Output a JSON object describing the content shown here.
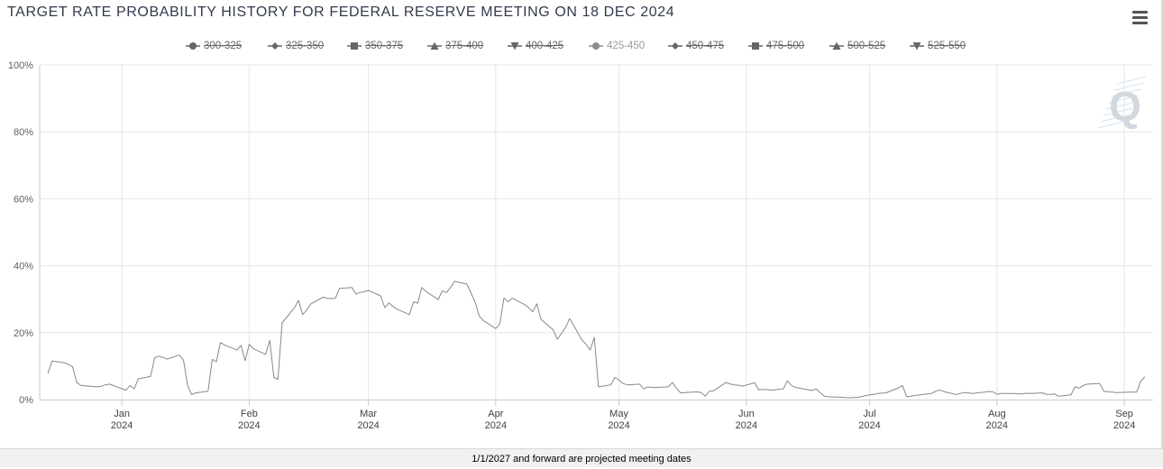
{
  "chart_data": {
    "type": "line",
    "title": "TARGET RATE PROBABILITY HISTORY FOR FEDERAL RESERVE MEETING ON 18 DEC 2024",
    "legend_placement": "top-center",
    "legend": [
      {
        "name": "300-325",
        "marker": "circle",
        "visible": false
      },
      {
        "name": "325-350",
        "marker": "diamond",
        "visible": false
      },
      {
        "name": "350-375",
        "marker": "square",
        "visible": false
      },
      {
        "name": "375-400",
        "marker": "triangle",
        "visible": false
      },
      {
        "name": "400-425",
        "marker": "triangle-down",
        "visible": false
      },
      {
        "name": "425-450",
        "marker": "circle",
        "visible": true
      },
      {
        "name": "450-475",
        "marker": "diamond",
        "visible": false
      },
      {
        "name": "475-500",
        "marker": "square",
        "visible": false
      },
      {
        "name": "500-525",
        "marker": "triangle",
        "visible": false
      },
      {
        "name": "525-550",
        "marker": "triangle-down",
        "visible": false
      }
    ],
    "x_ticks": [
      {
        "date": "2024-01-01",
        "label1": "Jan",
        "label2": "2024"
      },
      {
        "date": "2024-02-01",
        "label1": "Feb",
        "label2": "2024"
      },
      {
        "date": "2024-03-01",
        "label1": "Mar",
        "label2": "2024"
      },
      {
        "date": "2024-04-01",
        "label1": "Apr",
        "label2": "2024"
      },
      {
        "date": "2024-05-01",
        "label1": "May",
        "label2": "2024"
      },
      {
        "date": "2024-06-01",
        "label1": "Jun",
        "label2": "2024"
      },
      {
        "date": "2024-07-01",
        "label1": "Jul",
        "label2": "2024"
      },
      {
        "date": "2024-08-01",
        "label1": "Aug",
        "label2": "2024"
      },
      {
        "date": "2024-09-01",
        "label1": "Sep",
        "label2": "2024"
      }
    ],
    "y_ticks": [
      "0%",
      "20%",
      "40%",
      "60%",
      "80%",
      "100%"
    ],
    "xlim": [
      "2023-12-12",
      "2024-09-08"
    ],
    "ylim": [
      0,
      100
    ],
    "grid": true,
    "series": [
      {
        "name": "425-450",
        "color": "#888888",
        "points": [
          [
            "2023-12-14",
            7.8
          ],
          [
            "2023-12-15",
            11.5
          ],
          [
            "2023-12-18",
            11.0
          ],
          [
            "2023-12-19",
            10.5
          ],
          [
            "2023-12-20",
            9.8
          ],
          [
            "2023-12-21",
            5.2
          ],
          [
            "2023-12-22",
            4.2
          ],
          [
            "2023-12-26",
            3.8
          ],
          [
            "2023-12-27",
            4.0
          ],
          [
            "2023-12-28",
            4.4
          ],
          [
            "2023-12-29",
            4.6
          ],
          [
            "2024-01-02",
            2.8
          ],
          [
            "2024-01-03",
            4.2
          ],
          [
            "2024-01-04",
            3.2
          ],
          [
            "2024-01-05",
            6.2
          ],
          [
            "2024-01-08",
            6.9
          ],
          [
            "2024-01-09",
            12.5
          ],
          [
            "2024-01-10",
            13.0
          ],
          [
            "2024-01-11",
            12.6
          ],
          [
            "2024-01-12",
            12.1
          ],
          [
            "2024-01-15",
            13.3
          ],
          [
            "2024-01-16",
            11.8
          ],
          [
            "2024-01-17",
            4.2
          ],
          [
            "2024-01-18",
            1.5
          ],
          [
            "2024-01-19",
            2.0
          ],
          [
            "2024-01-22",
            2.5
          ],
          [
            "2024-01-23",
            12.0
          ],
          [
            "2024-01-24",
            11.3
          ],
          [
            "2024-01-25",
            17.0
          ],
          [
            "2024-01-26",
            16.3
          ],
          [
            "2024-01-29",
            14.8
          ],
          [
            "2024-01-30",
            16.2
          ],
          [
            "2024-01-31",
            11.6
          ],
          [
            "2024-02-01",
            16.5
          ],
          [
            "2024-02-02",
            15.2
          ],
          [
            "2024-02-05",
            13.5
          ],
          [
            "2024-02-06",
            17.7
          ],
          [
            "2024-02-07",
            6.6
          ],
          [
            "2024-02-08",
            6.0
          ],
          [
            "2024-02-09",
            22.9
          ],
          [
            "2024-02-12",
            27.4
          ],
          [
            "2024-02-13",
            29.6
          ],
          [
            "2024-02-14",
            25.4
          ],
          [
            "2024-02-15",
            26.8
          ],
          [
            "2024-02-16",
            28.6
          ],
          [
            "2024-02-19",
            30.6
          ],
          [
            "2024-02-20",
            30.3
          ],
          [
            "2024-02-21",
            30.2
          ],
          [
            "2024-02-22",
            30.3
          ],
          [
            "2024-02-23",
            33.2
          ],
          [
            "2024-02-26",
            33.5
          ],
          [
            "2024-02-27",
            31.5
          ],
          [
            "2024-02-28",
            32.0
          ],
          [
            "2024-02-29",
            32.2
          ],
          [
            "2024-03-01",
            32.6
          ],
          [
            "2024-03-04",
            31.0
          ],
          [
            "2024-03-05",
            27.5
          ],
          [
            "2024-03-06",
            28.9
          ],
          [
            "2024-03-07",
            27.8
          ],
          [
            "2024-03-08",
            27.0
          ],
          [
            "2024-03-11",
            25.4
          ],
          [
            "2024-03-12",
            29.2
          ],
          [
            "2024-03-13",
            28.8
          ],
          [
            "2024-03-14",
            33.5
          ],
          [
            "2024-03-15",
            32.3
          ],
          [
            "2024-03-18",
            29.9
          ],
          [
            "2024-03-19",
            32.5
          ],
          [
            "2024-03-20",
            32.0
          ],
          [
            "2024-03-21",
            33.5
          ],
          [
            "2024-03-22",
            35.3
          ],
          [
            "2024-03-25",
            34.5
          ],
          [
            "2024-03-26",
            31.8
          ],
          [
            "2024-03-27",
            29.0
          ],
          [
            "2024-03-28",
            25.0
          ],
          [
            "2024-03-29",
            23.6
          ],
          [
            "2024-04-01",
            21.2
          ],
          [
            "2024-04-02",
            22.6
          ],
          [
            "2024-04-03",
            30.4
          ],
          [
            "2024-04-04",
            29.2
          ],
          [
            "2024-04-05",
            30.3
          ],
          [
            "2024-04-08",
            28.4
          ],
          [
            "2024-04-09",
            27.5
          ],
          [
            "2024-04-10",
            26.2
          ],
          [
            "2024-04-11",
            28.6
          ],
          [
            "2024-04-12",
            24.0
          ],
          [
            "2024-04-15",
            20.8
          ],
          [
            "2024-04-16",
            18.0
          ],
          [
            "2024-04-17",
            19.8
          ],
          [
            "2024-04-18",
            21.5
          ],
          [
            "2024-04-19",
            24.2
          ],
          [
            "2024-04-22",
            17.8
          ],
          [
            "2024-04-23",
            16.5
          ],
          [
            "2024-04-24",
            14.8
          ],
          [
            "2024-04-25",
            18.6
          ],
          [
            "2024-04-26",
            3.8
          ],
          [
            "2024-04-29",
            4.4
          ],
          [
            "2024-04-30",
            6.6
          ],
          [
            "2024-05-01",
            5.8
          ],
          [
            "2024-05-02",
            4.8
          ],
          [
            "2024-05-03",
            4.4
          ],
          [
            "2024-05-06",
            4.6
          ],
          [
            "2024-05-07",
            3.2
          ],
          [
            "2024-05-08",
            3.8
          ],
          [
            "2024-05-09",
            3.6
          ],
          [
            "2024-05-10",
            3.6
          ],
          [
            "2024-05-13",
            3.8
          ],
          [
            "2024-05-14",
            5.1
          ],
          [
            "2024-05-15",
            3.4
          ],
          [
            "2024-05-16",
            2.0
          ],
          [
            "2024-05-17",
            2.1
          ],
          [
            "2024-05-20",
            2.3
          ],
          [
            "2024-05-21",
            2.1
          ],
          [
            "2024-05-22",
            1.0
          ],
          [
            "2024-05-23",
            2.5
          ],
          [
            "2024-05-24",
            2.6
          ],
          [
            "2024-05-27",
            5.1
          ],
          [
            "2024-05-28",
            4.7
          ],
          [
            "2024-05-29",
            4.4
          ],
          [
            "2024-05-30",
            4.3
          ],
          [
            "2024-05-31",
            4.0
          ],
          [
            "2024-06-03",
            5.0
          ],
          [
            "2024-06-04",
            2.9
          ],
          [
            "2024-06-05",
            3.0
          ],
          [
            "2024-06-06",
            3.0
          ],
          [
            "2024-06-07",
            2.8
          ],
          [
            "2024-06-10",
            3.2
          ],
          [
            "2024-06-11",
            5.6
          ],
          [
            "2024-06-12",
            4.2
          ],
          [
            "2024-06-13",
            3.6
          ],
          [
            "2024-06-14",
            3.4
          ],
          [
            "2024-06-17",
            2.7
          ],
          [
            "2024-06-18",
            3.2
          ],
          [
            "2024-06-19",
            2.0
          ],
          [
            "2024-06-20",
            1.0
          ],
          [
            "2024-06-21",
            0.8
          ],
          [
            "2024-06-24",
            0.7
          ],
          [
            "2024-06-25",
            0.6
          ],
          [
            "2024-06-26",
            0.5
          ],
          [
            "2024-06-27",
            0.6
          ],
          [
            "2024-06-28",
            0.6
          ],
          [
            "2024-07-01",
            1.4
          ],
          [
            "2024-07-02",
            1.5
          ],
          [
            "2024-07-03",
            1.8
          ],
          [
            "2024-07-05",
            2.0
          ],
          [
            "2024-07-08",
            3.5
          ],
          [
            "2024-07-09",
            4.2
          ],
          [
            "2024-07-10",
            0.9
          ],
          [
            "2024-07-11",
            1.0
          ],
          [
            "2024-07-12",
            1.2
          ],
          [
            "2024-07-15",
            1.7
          ],
          [
            "2024-07-16",
            1.8
          ],
          [
            "2024-07-17",
            2.4
          ],
          [
            "2024-07-18",
            2.9
          ],
          [
            "2024-07-19",
            2.4
          ],
          [
            "2024-07-22",
            1.5
          ],
          [
            "2024-07-23",
            1.8
          ],
          [
            "2024-07-24",
            2.1
          ],
          [
            "2024-07-25",
            2.0
          ],
          [
            "2024-07-26",
            1.8
          ],
          [
            "2024-07-29",
            2.2
          ],
          [
            "2024-07-30",
            2.4
          ],
          [
            "2024-07-31",
            2.3
          ],
          [
            "2024-08-01",
            1.6
          ],
          [
            "2024-08-02",
            1.8
          ],
          [
            "2024-08-05",
            1.8
          ],
          [
            "2024-08-06",
            1.7
          ],
          [
            "2024-08-07",
            1.7
          ],
          [
            "2024-08-08",
            1.9
          ],
          [
            "2024-08-09",
            1.8
          ],
          [
            "2024-08-12",
            2.0
          ],
          [
            "2024-08-13",
            1.6
          ],
          [
            "2024-08-14",
            1.5
          ],
          [
            "2024-08-15",
            1.7
          ],
          [
            "2024-08-16",
            1.0
          ],
          [
            "2024-08-19",
            1.4
          ],
          [
            "2024-08-20",
            3.8
          ],
          [
            "2024-08-21",
            3.4
          ],
          [
            "2024-08-22",
            4.2
          ],
          [
            "2024-08-23",
            4.6
          ],
          [
            "2024-08-26",
            4.8
          ],
          [
            "2024-08-27",
            2.5
          ],
          [
            "2024-08-28",
            2.3
          ],
          [
            "2024-08-29",
            2.2
          ],
          [
            "2024-08-30",
            2.1
          ],
          [
            "2024-09-03",
            2.2
          ],
          [
            "2024-09-04",
            2.2
          ],
          [
            "2024-09-05",
            5.5
          ],
          [
            "2024-09-06",
            6.8
          ]
        ]
      }
    ]
  },
  "watermark": {
    "letter": "Q"
  },
  "menu": {
    "icon": "hamburger-menu-icon"
  },
  "footer": {
    "note": "1/1/2027 and forward are projected meeting dates"
  }
}
